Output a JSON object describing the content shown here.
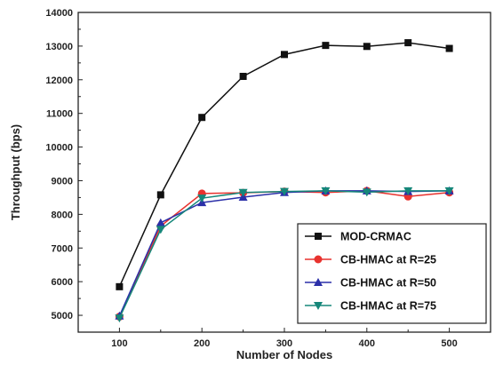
{
  "chart_data": {
    "type": "line",
    "xlabel": "Number of Nodes",
    "ylabel": "Throughput (bps)",
    "xlim": [
      50,
      550
    ],
    "ylim": [
      4500,
      14000
    ],
    "xticks": [
      100,
      200,
      300,
      400,
      500
    ],
    "yticks": [
      5000,
      6000,
      7000,
      8000,
      9000,
      10000,
      11000,
      12000,
      13000,
      14000
    ],
    "grid": false,
    "legend_position": "bottom-right",
    "x": [
      100,
      150,
      200,
      250,
      300,
      350,
      400,
      450,
      500
    ],
    "series": [
      {
        "name": "MOD-CRMAC",
        "color": "#111111",
        "marker": "square",
        "values": [
          5850,
          8580,
          10880,
          12100,
          12750,
          13020,
          12990,
          13100,
          12930
        ]
      },
      {
        "name": "CB-HMAC at R=25",
        "color": "#e8322e",
        "marker": "circle",
        "values": [
          4960,
          7650,
          8620,
          8640,
          8680,
          8650,
          8700,
          8530,
          8650
        ]
      },
      {
        "name": "CB-HMAC at R=50",
        "color": "#2b2fa8",
        "marker": "triangle-up",
        "values": [
          4980,
          7750,
          8350,
          8510,
          8650,
          8700,
          8700,
          8680,
          8700
        ]
      },
      {
        "name": "CB-HMAC at R=75",
        "color": "#16877a",
        "marker": "triangle-down",
        "values": [
          4920,
          7550,
          8480,
          8650,
          8680,
          8700,
          8660,
          8700,
          8700
        ]
      }
    ]
  }
}
